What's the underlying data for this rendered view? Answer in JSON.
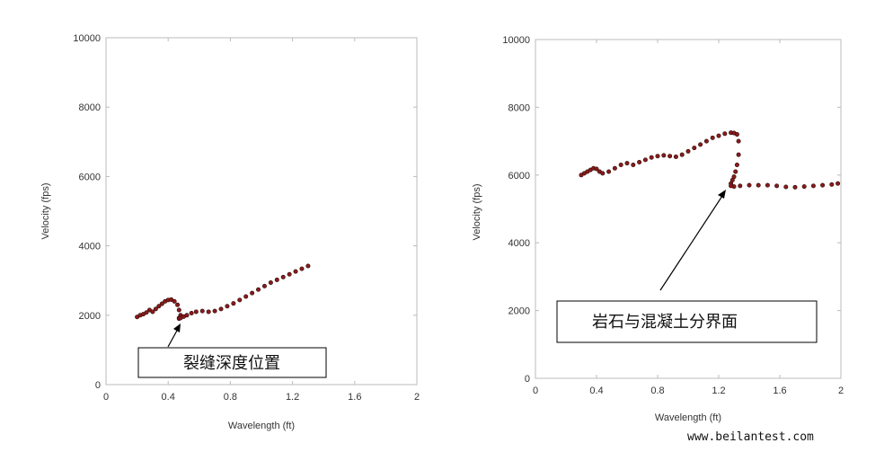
{
  "chart_data": [
    {
      "type": "scatter",
      "title": "",
      "xlabel": "Wavelength (ft)",
      "ylabel": "Velocity (fps)",
      "xlim": [
        0,
        2
      ],
      "ylim": [
        0,
        10000
      ],
      "xticks": [
        "0",
        "0.4",
        "0.8",
        "1.2",
        "1.6",
        "2"
      ],
      "yticks": [
        "0",
        "2000",
        "4000",
        "6000",
        "8000",
        "10000"
      ],
      "grid": false,
      "marker_color": "#8b1a1a",
      "series": [
        {
          "x": [
            0.2,
            0.22,
            0.24,
            0.26,
            0.28,
            0.3,
            0.32,
            0.34,
            0.36,
            0.38,
            0.4,
            0.42,
            0.44,
            0.46,
            0.47,
            0.48,
            0.47,
            0.47,
            0.48,
            0.5,
            0.52,
            0.55,
            0.58,
            0.62,
            0.66,
            0.7,
            0.74,
            0.78,
            0.82,
            0.86,
            0.9,
            0.94,
            0.98,
            1.02,
            1.06,
            1.1,
            1.14,
            1.18,
            1.22,
            1.26,
            1.3
          ],
          "y": [
            1950,
            2000,
            2030,
            2080,
            2150,
            2100,
            2180,
            2260,
            2330,
            2400,
            2440,
            2450,
            2400,
            2300,
            2150,
            2000,
            1920,
            1900,
            1920,
            1960,
            2000,
            2060,
            2100,
            2120,
            2100,
            2120,
            2180,
            2260,
            2340,
            2440,
            2540,
            2640,
            2740,
            2840,
            2940,
            3020,
            3100,
            3180,
            3260,
            3340,
            3420
          ]
        }
      ],
      "annotation": {
        "text": "裂缝深度位置",
        "arrow_to": [
          0.48,
          1900
        ]
      }
    },
    {
      "type": "scatter",
      "title": "",
      "xlabel": "Wavelength (ft)",
      "ylabel": "Velocity (fps)",
      "xlim": [
        0,
        2
      ],
      "ylim": [
        0,
        10000
      ],
      "xticks": [
        "0",
        "0.4",
        "0.8",
        "1.2",
        "1.6",
        "2"
      ],
      "yticks": [
        "0",
        "2000",
        "4000",
        "6000",
        "8000",
        "10000"
      ],
      "grid": false,
      "marker_color": "#8b1a1a",
      "series": [
        {
          "x": [
            0.3,
            0.32,
            0.34,
            0.36,
            0.38,
            0.4,
            0.42,
            0.44,
            0.48,
            0.52,
            0.56,
            0.6,
            0.64,
            0.68,
            0.72,
            0.76,
            0.8,
            0.84,
            0.88,
            0.92,
            0.96,
            1.0,
            1.04,
            1.08,
            1.12,
            1.16,
            1.2,
            1.24,
            1.28,
            1.3,
            1.32,
            1.33,
            1.33,
            1.32,
            1.31,
            1.3,
            1.29,
            1.28,
            1.28,
            1.3,
            1.34,
            1.4,
            1.46,
            1.52,
            1.58,
            1.64,
            1.7,
            1.76,
            1.82,
            1.88,
            1.94,
            1.98
          ],
          "y": [
            6000,
            6050,
            6100,
            6150,
            6200,
            6180,
            6100,
            6050,
            6100,
            6200,
            6300,
            6350,
            6300,
            6380,
            6450,
            6520,
            6560,
            6580,
            6560,
            6540,
            6600,
            6700,
            6800,
            6900,
            7000,
            7100,
            7160,
            7220,
            7250,
            7240,
            7200,
            7000,
            6600,
            6300,
            6100,
            5950,
            5850,
            5750,
            5680,
            5660,
            5680,
            5700,
            5700,
            5700,
            5680,
            5650,
            5640,
            5660,
            5680,
            5700,
            5720,
            5750
          ]
        }
      ],
      "annotation": {
        "text": "岩石与混凝土分界面",
        "arrow_to": [
          1.29,
          5800
        ]
      }
    }
  ],
  "watermark": "www.beilantest.com"
}
